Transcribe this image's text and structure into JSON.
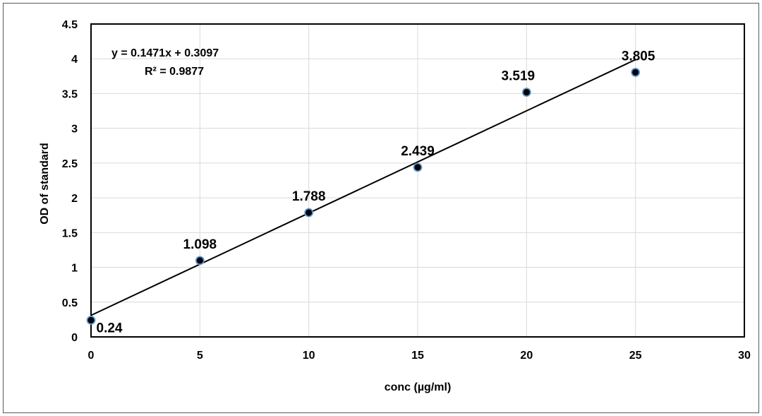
{
  "chart_data": {
    "type": "scatter",
    "title": "",
    "xlabel": "conc (µg/ml)",
    "ylabel": "OD of standard",
    "xlim": [
      0,
      30
    ],
    "ylim": [
      0,
      4.5
    ],
    "x_ticks": [
      "0",
      "5",
      "10",
      "15",
      "20",
      "25",
      "30"
    ],
    "y_ticks": [
      "0",
      "0.5",
      "1",
      "1.5",
      "2",
      "2.5",
      "3",
      "3.5",
      "4",
      "4.5"
    ],
    "grid": true,
    "legend": "none",
    "series": [
      {
        "x": [
          0,
          5,
          10,
          15,
          20,
          25
        ],
        "y": [
          0.24,
          1.098,
          1.788,
          2.439,
          3.519,
          3.805
        ],
        "labels": [
          "0.24",
          "1.098",
          "1.788",
          "2.439",
          "3.519",
          "3.805"
        ],
        "color": "#000000",
        "marker_edge": "#5b9bd5"
      }
    ],
    "trendline": {
      "type": "linear",
      "slope": 0.1471,
      "intercept": 0.3097,
      "x_range": [
        0,
        25
      ],
      "equation": "y = 0.1471x + 0.3097",
      "r_squared": "R² = 0.9877",
      "color": "#000000"
    }
  }
}
